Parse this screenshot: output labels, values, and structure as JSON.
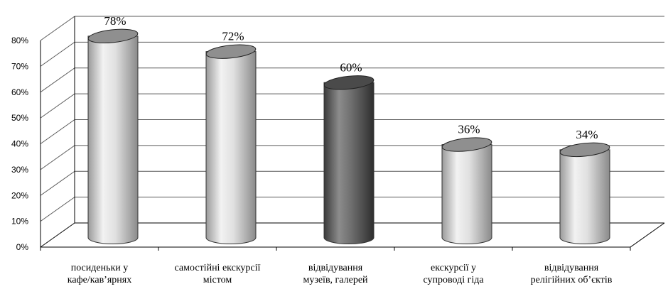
{
  "chart_data": {
    "type": "bar",
    "style": "3d-cylinder",
    "title": "",
    "xlabel": "",
    "ylabel": "",
    "ylim": [
      0,
      80
    ],
    "ytick_step": 10,
    "ytick_labels": [
      "0%",
      "10%",
      "20%",
      "30%",
      "40%",
      "50%",
      "60%",
      "70%",
      "80%"
    ],
    "grid": true,
    "categories": [
      [
        "посиденьки у",
        "кафе/кав’ярнях"
      ],
      [
        "самостійні екскурсії",
        "містом"
      ],
      [
        "відвідування",
        "музеїв, галерей"
      ],
      [
        "екскурсії у",
        "супроводі гіда"
      ],
      [
        "відвідування",
        "релігійних об’єктів"
      ]
    ],
    "values": [
      78,
      72,
      60,
      36,
      34
    ],
    "value_labels": [
      "78%",
      "72%",
      "60%",
      "36%",
      "34%"
    ],
    "highlight_index": 2,
    "colors": {
      "light_bar": "#d9d9d9",
      "dark_bar": "#6b6b6b",
      "grid": "#595959",
      "axis": "#000000"
    }
  }
}
